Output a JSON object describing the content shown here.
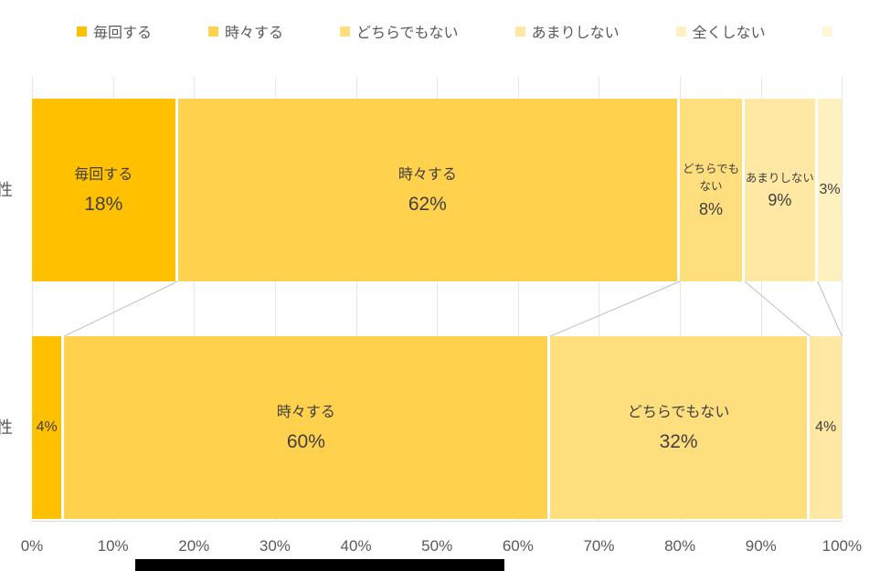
{
  "legend": {
    "items": [
      {
        "label": "毎回する",
        "color": "#FFC000"
      },
      {
        "label": "時々する",
        "color": "#FFD14D"
      },
      {
        "label": "どちらでもない",
        "color": "#FFDE7E"
      },
      {
        "label": "あまりしない",
        "color": "#FFE8A3"
      },
      {
        "label": "全くしない",
        "color": "#FFF0C0"
      },
      {
        "label": "",
        "color": "#FFF6D8"
      }
    ]
  },
  "chart_data": {
    "type": "bar",
    "variant": "horizontal 100% stacked",
    "title": "",
    "series_names": [
      "毎回する",
      "時々する",
      "どちらでもない",
      "あまりしない",
      "全くしない"
    ],
    "series_colors": [
      "#FFC000",
      "#FFD14D",
      "#FFDE7E",
      "#FFE8A3",
      "#FFF0C0"
    ],
    "categories": [
      "性",
      "性"
    ],
    "x_ticks": [
      "0%",
      "10%",
      "20%",
      "30%",
      "40%",
      "50%",
      "60%",
      "70%",
      "80%",
      "90%",
      "100%"
    ],
    "xlim": [
      0,
      100
    ],
    "grid": true,
    "legend_position": "top",
    "gridline_color": "#E7E7E7",
    "axis_color": "#D9D9D9",
    "label_color": "#404040",
    "connector_color": "#C0C0C0",
    "bars": [
      {
        "category": "性",
        "segments": [
          {
            "name": "毎回する",
            "pct": 18,
            "label": "毎回する",
            "value_label": "18%",
            "size": "large"
          },
          {
            "name": "時々する",
            "pct": 62,
            "label": "時々する",
            "value_label": "62%",
            "size": "large"
          },
          {
            "name": "どちらでもない",
            "pct": 8,
            "label": "どちらでもない",
            "value_label": "8%",
            "size": "small"
          },
          {
            "name": "あまりしない",
            "pct": 9,
            "label": "あまりしない",
            "value_label": "9%",
            "size": "small"
          },
          {
            "name": "全くしない",
            "pct": 3,
            "label": "",
            "value_label": "3%",
            "size": "tiny"
          }
        ]
      },
      {
        "category": "性",
        "segments": [
          {
            "name": "毎回する",
            "pct": 4,
            "label": "",
            "value_label": "4%",
            "size": "tiny"
          },
          {
            "name": "時々する",
            "pct": 60,
            "label": "時々する",
            "value_label": "60%",
            "size": "large"
          },
          {
            "name": "どちらでもない",
            "pct": 32,
            "label": "どちらでもない",
            "value_label": "32%",
            "size": "large"
          },
          {
            "name": "あまりしない",
            "pct": 4,
            "label": "",
            "value_label": "4%",
            "size": "tiny"
          }
        ]
      }
    ]
  }
}
